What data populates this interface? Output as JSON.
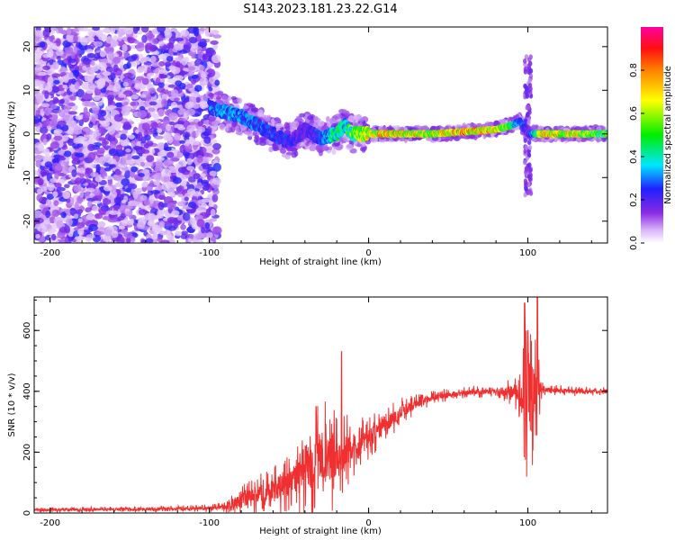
{
  "figure_title": "S143.2023.181.23.22.G14",
  "chart_data": [
    {
      "type": "heatmap",
      "panel": "spectrogram",
      "xlabel": "Height of straight line (km)",
      "ylabel": "Frequency (Hz)",
      "xlim": [
        -210,
        150
      ],
      "ylim": [
        -25,
        24.5
      ],
      "xticks": [
        -200,
        -100,
        0,
        100
      ],
      "yticks": [
        -20,
        -10,
        0,
        10,
        20
      ],
      "colorbar": {
        "label": "Normalized spectral amplitude",
        "range": [
          0,
          1
        ],
        "ticks": [
          0.0,
          0.2,
          0.4,
          0.6,
          0.8
        ],
        "colormap": "rainbow (white-purple-blue-cyan-green-yellow-red-magenta)"
      },
      "ridge_frequency_hz": {
        "x": [
          -100,
          -90,
          -80,
          -70,
          -60,
          -50,
          -40,
          -30,
          -20,
          -15,
          -10,
          0,
          10,
          20,
          40,
          60,
          80,
          90,
          95,
          100,
          110,
          130,
          150
        ],
        "y": [
          6,
          5,
          4,
          2,
          0,
          -2,
          1,
          -1,
          0,
          2,
          0,
          0,
          0,
          0,
          0,
          0.5,
          1,
          2,
          3,
          0,
          0,
          0,
          0
        ],
        "amplitude": [
          0.3,
          0.35,
          0.35,
          0.3,
          0.3,
          0.25,
          0.2,
          0.3,
          0.5,
          0.45,
          0.6,
          0.7,
          0.8,
          0.75,
          0.7,
          0.85,
          0.75,
          0.5,
          0.35,
          0.2,
          0.8,
          0.7,
          0.55
        ]
      },
      "noise_region_x": [
        -210,
        -95
      ],
      "notch_feature_x": 100,
      "notch_frequency_range_hz": [
        -14,
        18
      ]
    },
    {
      "type": "line",
      "panel": "snr",
      "xlabel": "Height of straight line (km)",
      "ylabel": "SNR (10 * v/v)",
      "xlim": [
        -210,
        150
      ],
      "ylim": [
        0,
        710
      ],
      "xticks": [
        -200,
        -100,
        0,
        100
      ],
      "yticks": [
        0,
        200,
        400,
        600
      ],
      "color": "#f03030",
      "envelope": {
        "x": [
          -210,
          -150,
          -100,
          -90,
          -80,
          -70,
          -60,
          -50,
          -40,
          -30,
          -20,
          -10,
          0,
          10,
          20,
          30,
          40,
          60,
          80,
          90,
          95,
          100,
          110,
          130,
          150
        ],
        "y": [
          10,
          12,
          15,
          20,
          40,
          60,
          75,
          95,
          150,
          180,
          190,
          210,
          250,
          290,
          330,
          360,
          380,
          395,
          400,
          400,
          390,
          380,
          405,
          400,
          400
        ],
        "noise": [
          5,
          6,
          8,
          12,
          30,
          40,
          50,
          60,
          110,
          120,
          110,
          60,
          50,
          40,
          30,
          20,
          15,
          12,
          12,
          30,
          50,
          200,
          12,
          10,
          10
        ]
      },
      "spikes": [
        {
          "x": -17,
          "y": 530
        },
        {
          "x": -33,
          "y": 350
        },
        {
          "x": 98,
          "y": 690
        },
        {
          "x": 100,
          "y": 600
        },
        {
          "x": 106,
          "y": 710
        }
      ]
    }
  ]
}
